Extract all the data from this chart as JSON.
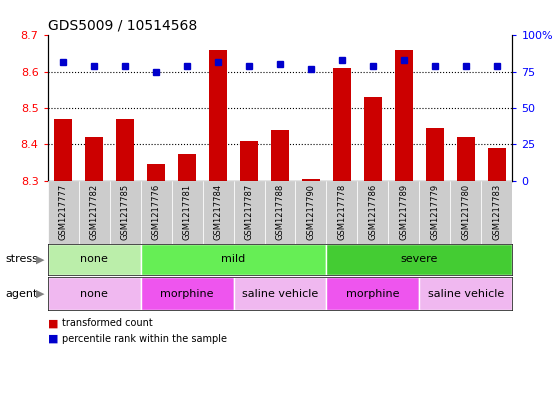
{
  "title": "GDS5009 / 10514568",
  "samples": [
    "GSM1217777",
    "GSM1217782",
    "GSM1217785",
    "GSM1217776",
    "GSM1217781",
    "GSM1217784",
    "GSM1217787",
    "GSM1217788",
    "GSM1217790",
    "GSM1217778",
    "GSM1217786",
    "GSM1217789",
    "GSM1217779",
    "GSM1217780",
    "GSM1217783"
  ],
  "transformed_count": [
    8.47,
    8.42,
    8.47,
    8.345,
    8.375,
    8.66,
    8.41,
    8.44,
    8.305,
    8.61,
    8.53,
    8.66,
    8.445,
    8.42,
    8.39
  ],
  "percentile_rank": [
    82,
    79,
    79,
    75,
    79,
    82,
    79,
    80,
    77,
    83,
    79,
    83,
    79,
    79,
    79
  ],
  "ylim_left": [
    8.3,
    8.7
  ],
  "ylim_right": [
    0,
    100
  ],
  "yticks_left": [
    8.3,
    8.4,
    8.5,
    8.6,
    8.7
  ],
  "yticks_right": [
    0,
    25,
    50,
    75,
    100
  ],
  "bar_bottom": 8.3,
  "bar_color": "#cc0000",
  "dot_color": "#0000cc",
  "stress_row": {
    "groups": [
      {
        "label": "none",
        "start": 0,
        "end": 3,
        "color": "#bbeeaa"
      },
      {
        "label": "mild",
        "start": 3,
        "end": 9,
        "color": "#66ee55"
      },
      {
        "label": "severe",
        "start": 9,
        "end": 15,
        "color": "#44cc33"
      }
    ]
  },
  "agent_row": {
    "groups": [
      {
        "label": "none",
        "start": 0,
        "end": 3,
        "color": "#f0b8f0"
      },
      {
        "label": "morphine",
        "start": 3,
        "end": 6,
        "color": "#ee55ee"
      },
      {
        "label": "saline vehicle",
        "start": 6,
        "end": 9,
        "color": "#f0b8f0"
      },
      {
        "label": "morphine",
        "start": 9,
        "end": 12,
        "color": "#ee55ee"
      },
      {
        "label": "saline vehicle",
        "start": 12,
        "end": 15,
        "color": "#f0b8f0"
      }
    ]
  },
  "background_color": "#ffffff",
  "tick_label_bg": "#cccccc",
  "chart_bg": "#ffffff"
}
